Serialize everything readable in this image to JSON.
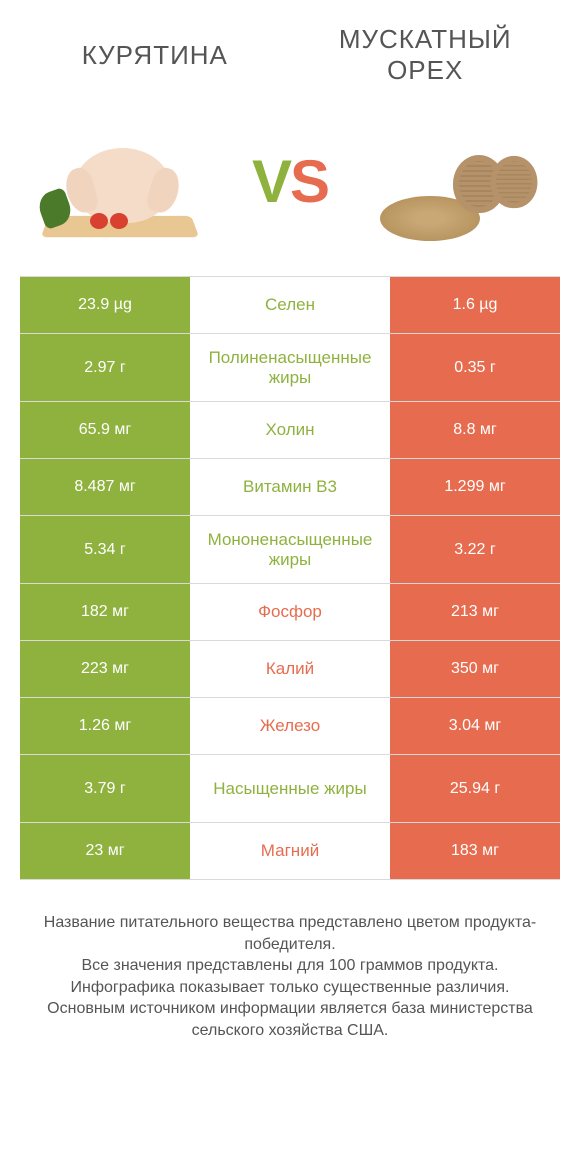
{
  "colors": {
    "green": "#8fb23f",
    "orange": "#e76c4f",
    "text": "#555555",
    "border": "#d9d9d9",
    "background": "#ffffff"
  },
  "header": {
    "left_title": "Курятина",
    "right_title": "Мускатный орех"
  },
  "vs": {
    "v": "V",
    "s": "S"
  },
  "rows": [
    {
      "nutrient": "Селен",
      "left_value": "23.9 µg",
      "right_value": "1.6 µg",
      "winner": "left",
      "tall": false
    },
    {
      "nutrient": "Полиненасыщенные жиры",
      "left_value": "2.97 г",
      "right_value": "0.35 г",
      "winner": "left",
      "tall": true
    },
    {
      "nutrient": "Холин",
      "left_value": "65.9 мг",
      "right_value": "8.8 мг",
      "winner": "left",
      "tall": false
    },
    {
      "nutrient": "Витамин B3",
      "left_value": "8.487 мг",
      "right_value": "1.299 мг",
      "winner": "left",
      "tall": false
    },
    {
      "nutrient": "Мононенасыщенные жиры",
      "left_value": "5.34 г",
      "right_value": "3.22 г",
      "winner": "left",
      "tall": true
    },
    {
      "nutrient": "Фосфор",
      "left_value": "182 мг",
      "right_value": "213 мг",
      "winner": "right",
      "tall": false
    },
    {
      "nutrient": "Калий",
      "left_value": "223 мг",
      "right_value": "350 мг",
      "winner": "right",
      "tall": false
    },
    {
      "nutrient": "Железо",
      "left_value": "1.26 мг",
      "right_value": "3.04 мг",
      "winner": "right",
      "tall": false
    },
    {
      "nutrient": "Насыщенные жиры",
      "left_value": "3.79 г",
      "right_value": "25.94 г",
      "winner": "left",
      "tall": true
    },
    {
      "nutrient": "Магний",
      "left_value": "23 мг",
      "right_value": "183 мг",
      "winner": "right",
      "tall": false
    }
  ],
  "footer": {
    "line1": "Название питательного вещества представлено цветом продукта-победителя.",
    "line2": "Все значения представлены для 100 граммов продукта.",
    "line3": "Инфографика показывает только существенные различия.",
    "line4": "Основным источником информации является база министерства сельского хозяйства США."
  }
}
